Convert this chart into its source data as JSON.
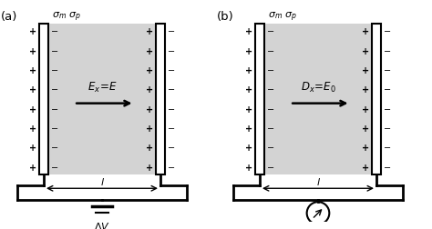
{
  "fig_width": 4.74,
  "fig_height": 2.53,
  "bg_color": "#ffffff",
  "plate_color": "#ffffff",
  "dielectric_color": "#d3d3d3",
  "label_a": "(a)",
  "label_b": "(b)",
  "length_label": "l",
  "voltage_label": "$\\Delta V$"
}
